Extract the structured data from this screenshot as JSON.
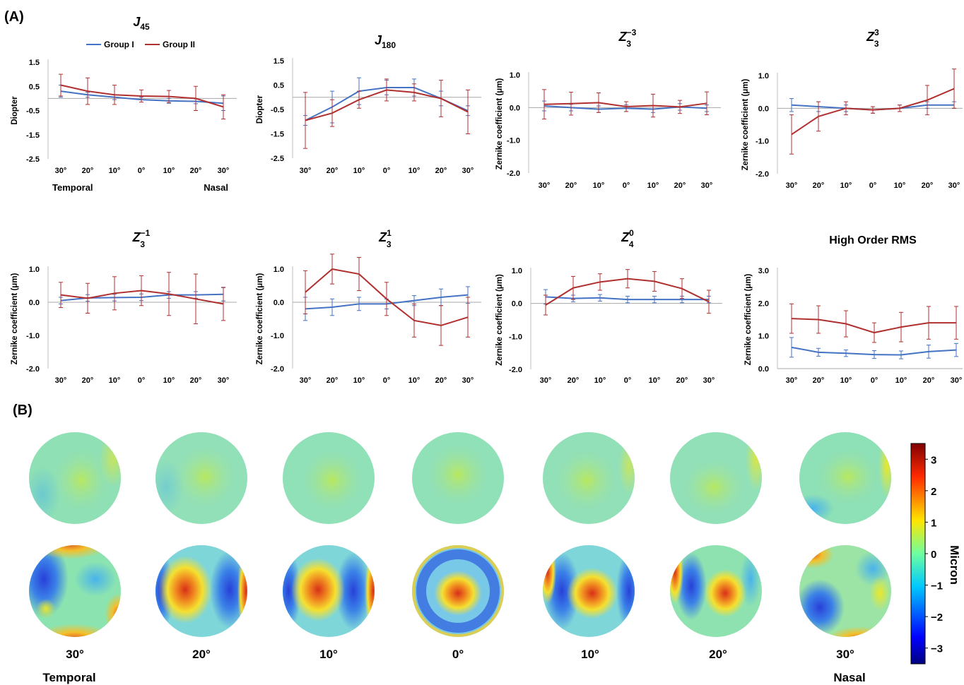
{
  "panel_labels": {
    "a": "(A)",
    "b": "(B)"
  },
  "legend": {
    "group1": "Group I",
    "group2": "Group II"
  },
  "colors": {
    "group1": "#4472c4",
    "group2": "#b03030",
    "zero_line": "#a8a8a8",
    "axis": "#bfbfbf"
  },
  "chart_data": [
    {
      "type": "line",
      "title_main": "J",
      "title_sub": "45",
      "title_sup": "",
      "ylabel": "Diopter",
      "categories": [
        "30°",
        "20°",
        "10°",
        "0°",
        "10°",
        "20°",
        "30°"
      ],
      "side_labels": {
        "left": "Temporal",
        "right": "Nasal"
      },
      "ylim": [
        -2.5,
        1.5
      ],
      "yticks": [
        "1.5",
        "0.5",
        "-0.5",
        "-1.5",
        "-2.5"
      ],
      "ytick_values": [
        1.5,
        0.5,
        -0.5,
        -1.5,
        -2.5
      ],
      "series": [
        {
          "name": "Group I",
          "values": [
            0.3,
            0.15,
            0.05,
            -0.05,
            -0.1,
            -0.12,
            -0.2
          ],
          "errors": [
            0.25,
            0.1,
            0.1,
            0.1,
            0.1,
            0.1,
            0.3
          ]
        },
        {
          "name": "Group II",
          "values": [
            0.55,
            0.3,
            0.15,
            0.1,
            0.08,
            0.0,
            -0.35
          ],
          "errors": [
            0.45,
            0.55,
            0.4,
            0.25,
            0.25,
            0.5,
            0.5
          ]
        }
      ]
    },
    {
      "type": "line",
      "title_main": "J",
      "title_sub": "180",
      "title_sup": "",
      "ylabel": "Diopter",
      "categories": [
        "30°",
        "20°",
        "10°",
        "0°",
        "10°",
        "20°",
        "30°"
      ],
      "side_labels": {
        "left": "",
        "right": ""
      },
      "ylim": [
        -2.5,
        1.5
      ],
      "yticks": [
        "1.5",
        "0.5",
        "-0.5",
        "-1.5",
        "-2.5"
      ],
      "ytick_values": [
        1.5,
        0.5,
        -0.5,
        -1.5,
        -2.5
      ],
      "series": [
        {
          "name": "Group I",
          "values": [
            -0.95,
            -0.4,
            0.25,
            0.4,
            0.4,
            -0.05,
            -0.55
          ],
          "errors": [
            0.2,
            0.65,
            0.55,
            0.3,
            0.35,
            0.3,
            0.2
          ]
        },
        {
          "name": "Group II",
          "values": [
            -0.95,
            -0.65,
            -0.1,
            0.3,
            0.2,
            -0.05,
            -0.6
          ],
          "errors": [
            1.15,
            0.55,
            0.35,
            0.45,
            0.35,
            0.75,
            0.9
          ]
        }
      ]
    },
    {
      "type": "line",
      "title_main": "Z",
      "title_sub": "3",
      "title_sup": "−3",
      "ylabel": "Zernike coefficient (μm)",
      "categories": [
        "30°",
        "20°",
        "10°",
        "0°",
        "10°",
        "20°",
        "30°"
      ],
      "side_labels": {
        "left": "",
        "right": ""
      },
      "ylim": [
        -2.0,
        1.0
      ],
      "yticks": [
        "1.0",
        "0.0",
        "-1.0",
        "-2.0"
      ],
      "ytick_values": [
        1.0,
        0.0,
        -1.0,
        -2.0
      ],
      "series": [
        {
          "name": "Group I",
          "values": [
            0.05,
            0.0,
            -0.05,
            -0.02,
            -0.05,
            0.02,
            -0.02
          ],
          "errors": [
            0.15,
            0.1,
            0.1,
            0.1,
            0.1,
            0.1,
            0.1
          ]
        },
        {
          "name": "Group II",
          "values": [
            0.1,
            0.12,
            0.15,
            0.03,
            0.06,
            0.02,
            0.13
          ],
          "errors": [
            0.45,
            0.35,
            0.3,
            0.15,
            0.35,
            0.2,
            0.35
          ]
        }
      ]
    },
    {
      "type": "line",
      "title_main": "Z",
      "title_sub": "3",
      "title_sup": "3",
      "ylabel": "Zernike coefficient (μm)",
      "categories": [
        "30°",
        "20°",
        "10°",
        "0°",
        "10°",
        "20°",
        "30°"
      ],
      "side_labels": {
        "left": "",
        "right": ""
      },
      "ylim": [
        -2.0,
        1.0
      ],
      "yticks": [
        "1.0",
        "0.0",
        "-1.0",
        "-2.0"
      ],
      "ytick_values": [
        1.0,
        0.0,
        -1.0,
        -2.0
      ],
      "series": [
        {
          "name": "Group I",
          "values": [
            0.1,
            0.05,
            0.0,
            -0.05,
            0.0,
            0.1,
            0.1
          ],
          "errors": [
            0.2,
            0.15,
            0.1,
            0.1,
            0.1,
            0.1,
            0.1
          ]
        },
        {
          "name": "Group II",
          "values": [
            -0.8,
            -0.25,
            0.0,
            -0.05,
            0.0,
            0.25,
            0.6
          ],
          "errors": [
            0.6,
            0.45,
            0.2,
            0.1,
            0.1,
            0.45,
            0.6
          ]
        }
      ]
    },
    {
      "type": "line",
      "title_main": "Z",
      "title_sub": "3",
      "title_sup": "−1",
      "ylabel": "Zernike coefficient (μm)",
      "categories": [
        "30°",
        "20°",
        "10°",
        "0°",
        "10°",
        "20°",
        "30°"
      ],
      "side_labels": {
        "left": "",
        "right": ""
      },
      "ylim": [
        -2.0,
        1.0
      ],
      "yticks": [
        "1.0",
        "0.0",
        "-1.0",
        "-2.0"
      ],
      "ytick_values": [
        1.0,
        0.0,
        -1.0,
        -2.0
      ],
      "series": [
        {
          "name": "Group I",
          "values": [
            0.05,
            0.13,
            0.14,
            0.15,
            0.22,
            0.22,
            0.24
          ],
          "errors": [
            0.1,
            0.1,
            0.1,
            0.1,
            0.1,
            0.1,
            0.2
          ]
        },
        {
          "name": "Group II",
          "values": [
            0.22,
            0.12,
            0.27,
            0.35,
            0.25,
            0.1,
            -0.05
          ],
          "errors": [
            0.38,
            0.45,
            0.5,
            0.45,
            0.65,
            0.75,
            0.5
          ]
        }
      ]
    },
    {
      "type": "line",
      "title_main": "Z",
      "title_sub": "3",
      "title_sup": "1",
      "ylabel": "Zernike coefficient (μm)",
      "categories": [
        "30°",
        "20°",
        "10°",
        "0°",
        "10°",
        "20°",
        "30°"
      ],
      "side_labels": {
        "left": "",
        "right": ""
      },
      "ylim": [
        -2.0,
        1.0
      ],
      "yticks": [
        "1.0",
        "0.0",
        "-1.0",
        "-2.0"
      ],
      "ytick_values": [
        1.0,
        0.0,
        -1.0,
        -2.0
      ],
      "series": [
        {
          "name": "Group I",
          "values": [
            -0.2,
            -0.15,
            -0.05,
            -0.05,
            0.05,
            0.15,
            0.22
          ],
          "errors": [
            0.35,
            0.25,
            0.2,
            0.15,
            0.15,
            0.25,
            0.25
          ]
        },
        {
          "name": "Group II",
          "values": [
            0.3,
            1.0,
            0.85,
            0.1,
            -0.55,
            -0.7,
            -0.45
          ],
          "errors": [
            0.65,
            0.45,
            0.5,
            0.5,
            0.5,
            0.6,
            0.6
          ]
        }
      ]
    },
    {
      "type": "line",
      "title_main": "Z",
      "title_sub": "4",
      "title_sup": "0",
      "ylabel": "Zernike coefficient (μm)",
      "categories": [
        "30°",
        "20°",
        "10°",
        "0°",
        "10°",
        "20°",
        "30°"
      ],
      "side_labels": {
        "left": "",
        "right": ""
      },
      "ylim": [
        -2.0,
        1.0
      ],
      "yticks": [
        "1.0",
        "0.0",
        "-1.0",
        "-2.0"
      ],
      "ytick_values": [
        1.0,
        0.0,
        -1.0,
        -2.0
      ],
      "series": [
        {
          "name": "Group I",
          "values": [
            0.2,
            0.15,
            0.17,
            0.12,
            0.12,
            0.12,
            0.12
          ],
          "errors": [
            0.22,
            0.1,
            0.1,
            0.1,
            0.1,
            0.1,
            0.1
          ]
        },
        {
          "name": "Group II",
          "values": [
            -0.05,
            0.47,
            0.65,
            0.75,
            0.67,
            0.45,
            0.05
          ],
          "errors": [
            0.3,
            0.35,
            0.25,
            0.28,
            0.3,
            0.3,
            0.35
          ]
        }
      ]
    },
    {
      "type": "line",
      "title_main": "High Order RMS",
      "title_sub": "",
      "title_sup": "",
      "ylabel": "Zernike coefficient (μm)",
      "categories": [
        "30°",
        "20°",
        "10°",
        "0°",
        "10°",
        "20°",
        "30°"
      ],
      "side_labels": {
        "left": "",
        "right": ""
      },
      "ylim": [
        0.0,
        3.0
      ],
      "yticks": [
        "3.0",
        "2.0",
        "1.0",
        "0.0"
      ],
      "ytick_values": [
        3.0,
        2.0,
        1.0,
        0.0
      ],
      "series": [
        {
          "name": "Group I",
          "values": [
            0.65,
            0.5,
            0.47,
            0.43,
            0.42,
            0.52,
            0.57
          ],
          "errors": [
            0.3,
            0.12,
            0.1,
            0.12,
            0.12,
            0.2,
            0.2
          ]
        },
        {
          "name": "Group II",
          "values": [
            1.53,
            1.5,
            1.37,
            1.1,
            1.27,
            1.4,
            1.4
          ],
          "errors": [
            0.45,
            0.42,
            0.4,
            0.3,
            0.45,
            0.5,
            0.5
          ]
        }
      ]
    }
  ],
  "wavefront_maps": {
    "angle_labels": [
      "30°",
      "20°",
      "10°",
      "0°",
      "10°",
      "20°",
      "30°"
    ],
    "side_labels": {
      "left": "Temporal",
      "right": "Nasal"
    },
    "colorbar": {
      "label": "Micron",
      "ticks": [
        "3",
        "2",
        "1",
        "0",
        "−1",
        "−2",
        "−3"
      ],
      "tick_values": [
        3,
        2,
        1,
        0,
        -1,
        -2,
        -3
      ],
      "range": [
        -3.5,
        3.5
      ]
    }
  }
}
